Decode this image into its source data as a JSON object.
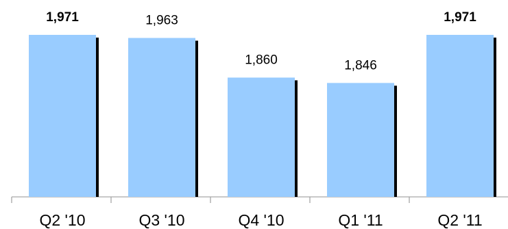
{
  "chart_data": {
    "type": "bar",
    "categories": [
      "Q2 '10",
      "Q3 '10",
      "Q4 '10",
      "Q1 '11",
      "Q2 '11"
    ],
    "values": [
      1971,
      1963,
      1860,
      1846,
      1971
    ],
    "value_labels": [
      "1,971",
      "1,963",
      "1,860",
      "1,846",
      "1,971"
    ],
    "bold_labels": [
      true,
      false,
      false,
      false,
      true
    ],
    "title": "",
    "xlabel": "",
    "ylabel": "",
    "ylim": [
      1550,
      1971
    ],
    "grid": false,
    "legend": "none",
    "bar_color": "#99CCFF",
    "bar_shadow_color": "#000000",
    "axis_color": "#A6A6A6"
  }
}
